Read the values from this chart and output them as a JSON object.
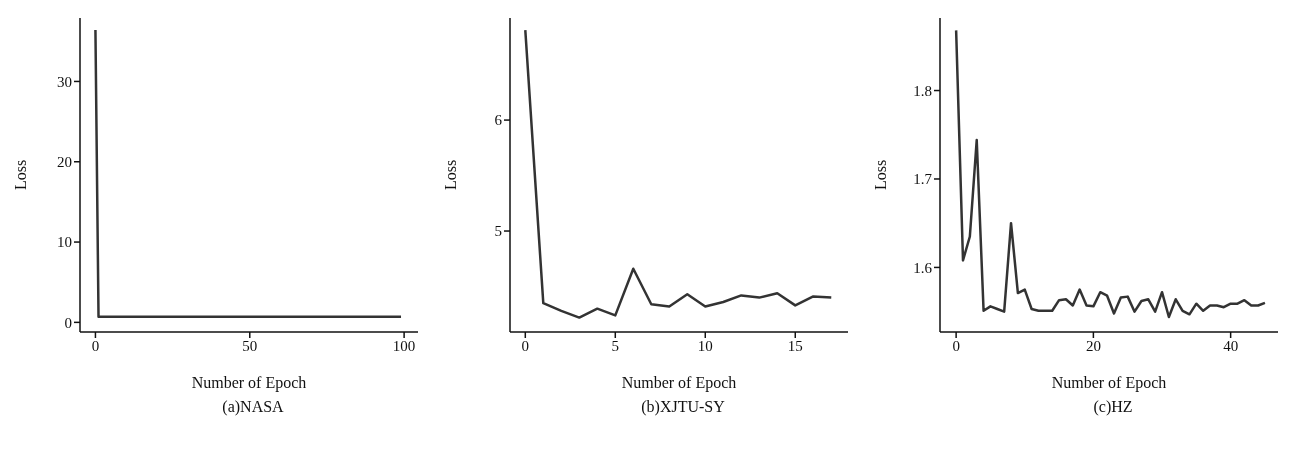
{
  "chart_data": [
    {
      "type": "line",
      "title": "(a)NASA",
      "xlabel": "Number of Epoch",
      "ylabel": "Loss",
      "x": [
        0,
        1,
        50,
        99
      ],
      "values": [
        36.4,
        0.7,
        0.7,
        0.7
      ],
      "color": "#333333",
      "xlim": [
        -5,
        104.5
      ],
      "ylim": [
        -1.2,
        37.9
      ],
      "xticks": [
        0,
        50,
        100
      ],
      "yticks": [
        0,
        10,
        20,
        30
      ],
      "grid": false,
      "marker": "none",
      "line_style": "solid"
    },
    {
      "type": "line",
      "title": "(b)XJTU-SY",
      "xlabel": "Number of Epoch",
      "ylabel": "Loss",
      "x": [
        0,
        1,
        2,
        3,
        4,
        5,
        6,
        7,
        8,
        9,
        10,
        11,
        12,
        13,
        14,
        15,
        16,
        17
      ],
      "values": [
        6.81,
        4.35,
        4.28,
        4.22,
        4.3,
        4.24,
        4.66,
        4.34,
        4.32,
        4.43,
        4.32,
        4.36,
        4.42,
        4.4,
        4.44,
        4.33,
        4.41,
        4.4
      ],
      "color": "#333333",
      "xlim": [
        -0.85,
        17.93
      ],
      "ylim": [
        4.09,
        6.92
      ],
      "xticks": [
        0,
        5,
        10,
        15
      ],
      "yticks": [
        5,
        6
      ],
      "grid": false,
      "marker": "none",
      "line_style": "solid"
    },
    {
      "type": "line",
      "title": "(c)HZ",
      "xlabel": "Number of Epoch",
      "ylabel": "Loss",
      "x": [
        0,
        1,
        2,
        3,
        4,
        5,
        6,
        7,
        8,
        9,
        10,
        11,
        12,
        13,
        14,
        15,
        16,
        17,
        18,
        19,
        20,
        21,
        22,
        23,
        24,
        25,
        26,
        27,
        28,
        29,
        30,
        31,
        32,
        33,
        34,
        35,
        36,
        37,
        38,
        39,
        40,
        41,
        42,
        43,
        44,
        45
      ],
      "values": [
        1.868,
        1.608,
        1.635,
        1.744,
        1.551,
        1.556,
        1.553,
        1.55,
        1.65,
        1.571,
        1.575,
        1.553,
        1.551,
        1.551,
        1.551,
        1.563,
        1.564,
        1.557,
        1.575,
        1.557,
        1.556,
        1.572,
        1.568,
        1.548,
        1.566,
        1.567,
        1.55,
        1.562,
        1.564,
        1.55,
        1.572,
        1.544,
        1.564,
        1.551,
        1.547,
        1.559,
        1.551,
        1.557,
        1.557,
        1.555,
        1.559,
        1.559,
        1.563,
        1.557,
        1.557,
        1.56
      ],
      "color": "#333333",
      "xlim": [
        -2.35,
        46.9
      ],
      "ylim": [
        1.527,
        1.882
      ],
      "xticks": [
        0,
        20,
        40
      ],
      "yticks": [
        1.6,
        1.7,
        1.8
      ],
      "grid": false,
      "marker": "none",
      "line_style": "solid"
    }
  ]
}
